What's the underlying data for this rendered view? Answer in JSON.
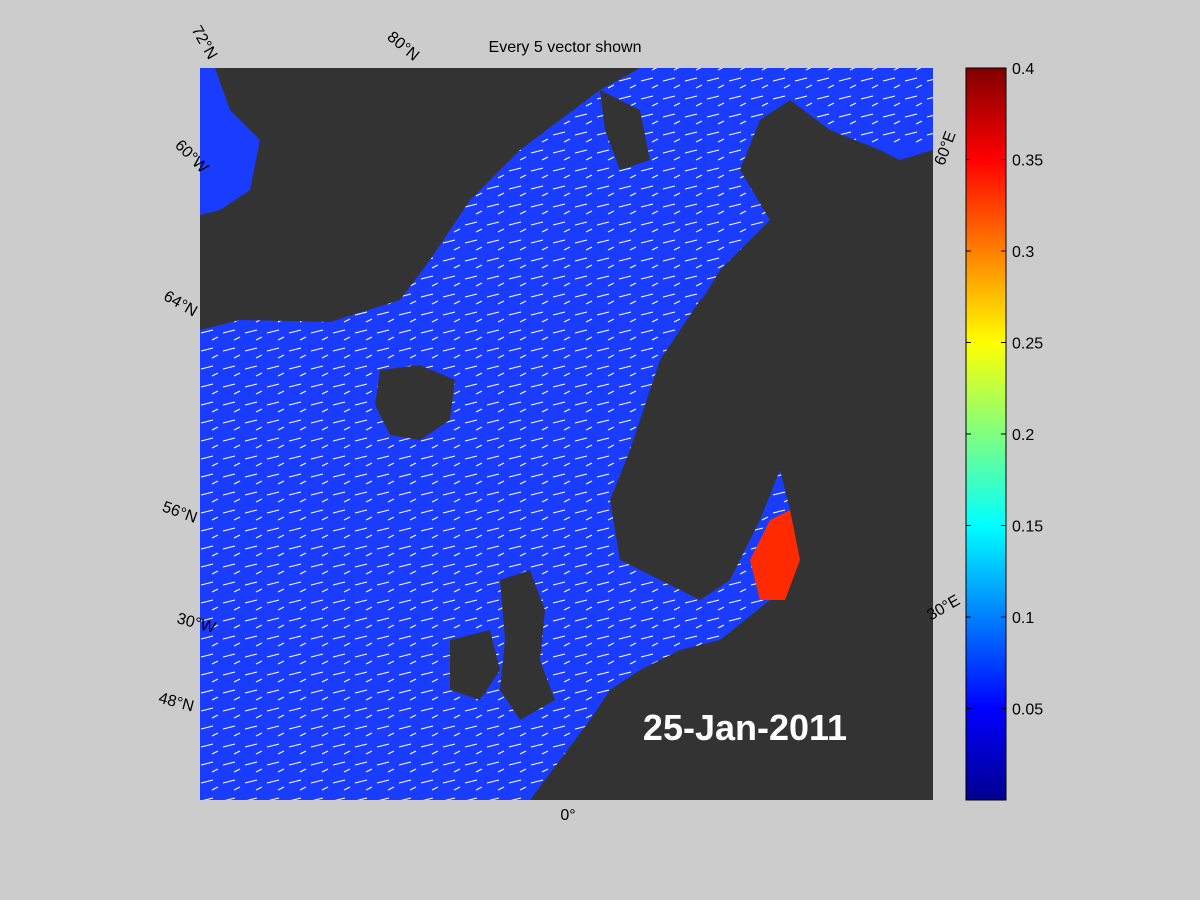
{
  "title": "Every 5 vector shown",
  "map": {
    "labels": [
      "72°N",
      "80°N",
      "60°W",
      "64°N",
      "56°N",
      "30°W",
      "48°N",
      "0°",
      "60°E",
      "30°E"
    ],
    "date": "25-Jan-2011"
  },
  "colorbar": {
    "lim": [
      0,
      0.4
    ],
    "ticks": [
      0.05,
      0.1,
      0.15,
      0.2,
      0.25,
      0.3,
      0.35,
      0.4
    ]
  }
}
